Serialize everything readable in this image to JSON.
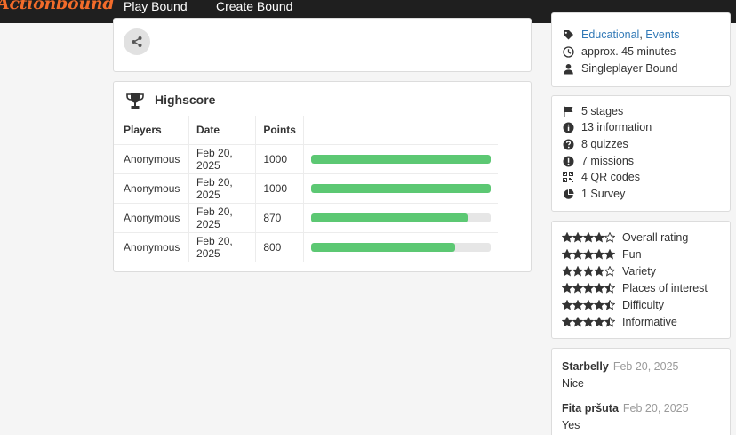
{
  "header": {
    "logo": "Actionbound",
    "nav": [
      "Play Bound",
      "Create Bound"
    ]
  },
  "highscore": {
    "title": "Highscore",
    "columns": [
      "Players",
      "Date",
      "Points"
    ],
    "max_points": 1000,
    "rows": [
      {
        "player": "Anonymous",
        "date": "Feb 20, 2025",
        "points": "1000",
        "fill": 1.0
      },
      {
        "player": "Anonymous",
        "date": "Feb 20, 2025",
        "points": "1000",
        "fill": 1.0
      },
      {
        "player": "Anonymous",
        "date": "Feb 20, 2025",
        "points": "870",
        "fill": 0.87
      },
      {
        "player": "Anonymous",
        "date": "Feb 20, 2025",
        "points": "800",
        "fill": 0.8
      }
    ]
  },
  "info": {
    "tag_1": "Educational",
    "tag_sep": ",",
    "tag_2": "Events",
    "duration": "approx. 45 minutes",
    "mode": "Singleplayer Bound"
  },
  "stats": {
    "stages": "5 stages",
    "information": "13 information",
    "quizzes": "8 quizzes",
    "missions": "7 missions",
    "qr_codes": "4 QR codes",
    "survey": "1 Survey"
  },
  "ratings": [
    {
      "label": "Overall rating",
      "stars": 4.0
    },
    {
      "label": "Fun",
      "stars": 5.0
    },
    {
      "label": "Variety",
      "stars": 4.0
    },
    {
      "label": "Places of interest",
      "stars": 4.5
    },
    {
      "label": "Difficulty",
      "stars": 4.5
    },
    {
      "label": "Informative",
      "stars": 4.5
    }
  ],
  "reviews": [
    {
      "name": "Starbelly",
      "date": "Feb 20, 2025",
      "text": "Nice"
    },
    {
      "name": "Fita pršuta",
      "date": "Feb 20, 2025",
      "text": "Yes"
    }
  ],
  "colors": {
    "accent": "#f26b2a",
    "bar": "#5cc873",
    "link": "#337ab7"
  }
}
